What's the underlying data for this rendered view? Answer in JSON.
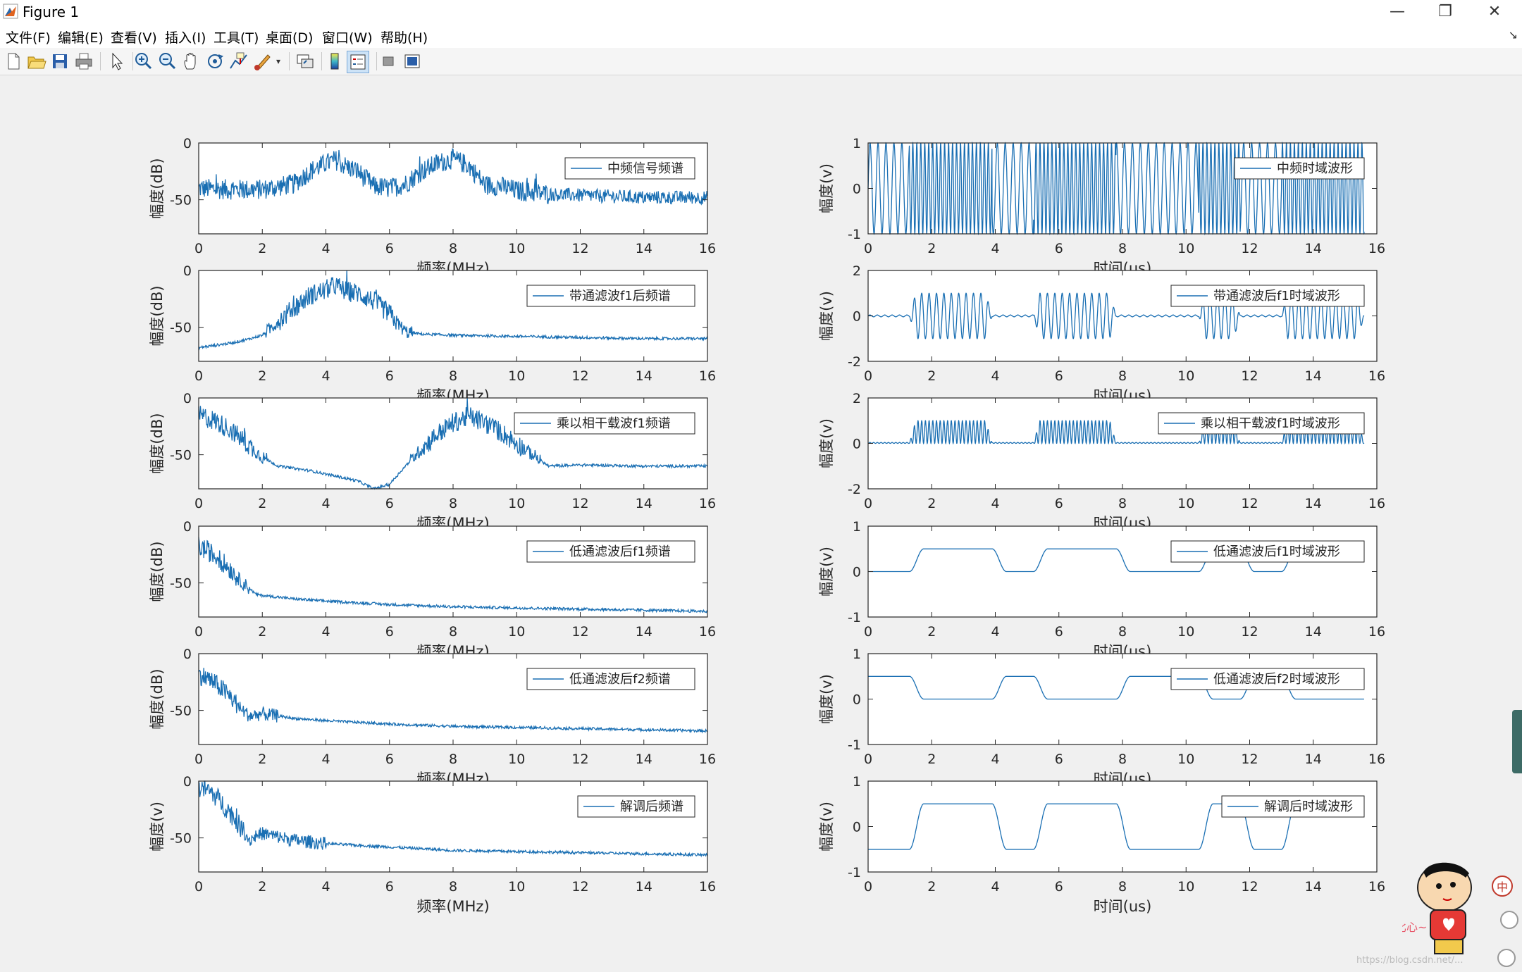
{
  "window": {
    "title": "Figure 1",
    "controls": {
      "minimize": "—",
      "restore": "❐",
      "close": "✕"
    }
  },
  "menu": {
    "items": [
      "文件(F)",
      "编辑(E)",
      "查看(V)",
      "插入(I)",
      "工具(T)",
      "桌面(D)",
      "窗口(W)",
      "帮助(H)"
    ],
    "corner_icon": "dock-arrow-icon"
  },
  "toolbar": {
    "buttons": [
      "new-figure-icon",
      "open-file-icon",
      "save-icon",
      "print-icon",
      "pointer-icon",
      "zoom-in-icon",
      "zoom-out-icon",
      "pan-icon",
      "rotate-3d-icon",
      "data-cursor-icon",
      "brush-icon",
      "link-plot-icon",
      "colorbar-icon",
      "legend-icon",
      "hide-plot-tools-icon",
      "show-plot-tools-icon"
    ]
  },
  "watermark": "https://blog.csdn.net/...",
  "overlay": {
    "ime_label": "中",
    "bubble": "比心~"
  },
  "chart_data": [
    {
      "type": "line",
      "panel": "freq",
      "legend": "中频信号频谱",
      "ylabel": "幅度(dB)",
      "xlabel": "频率(MHz)",
      "xlim": [
        0,
        16
      ],
      "ylim": [
        -80,
        0
      ],
      "xticks": [
        0,
        2,
        4,
        6,
        8,
        10,
        12,
        14,
        16
      ],
      "yticks": [
        0,
        -50
      ],
      "series": [
        {
          "name": "中频信号频谱",
          "x": [
            0,
            1,
            2,
            3,
            3.5,
            4,
            4.3,
            4.6,
            5,
            5.5,
            6,
            6.5,
            7,
            7.5,
            8,
            8.5,
            9,
            9.5,
            10,
            11,
            12,
            13,
            14,
            15,
            16
          ],
          "y": [
            -40,
            -41,
            -41,
            -36,
            -25,
            -18,
            -15,
            -20,
            -25,
            -38,
            -40,
            -36,
            -25,
            -18,
            -14,
            -20,
            -37,
            -38,
            -42,
            -45,
            -46,
            -47,
            -48,
            -48,
            -48
          ]
        }
      ]
    },
    {
      "type": "line",
      "panel": "freq",
      "legend": "带通滤波f1后频谱",
      "ylabel": "幅度(dB)",
      "xlabel": "频率(MHz)",
      "xlim": [
        0,
        16
      ],
      "ylim": [
        -80,
        0
      ],
      "xticks": [
        0,
        2,
        4,
        6,
        8,
        10,
        12,
        14,
        16
      ],
      "yticks": [
        0,
        -50
      ],
      "series": [
        {
          "name": "带通滤波f1后频谱",
          "x": [
            0,
            1,
            1.5,
            2,
            2.5,
            3,
            3.5,
            4,
            4.3,
            4.6,
            5,
            5.5,
            6,
            6.5,
            7,
            8,
            10,
            12,
            14,
            16
          ],
          "y": [
            -68,
            -64,
            -61,
            -57,
            -45,
            -33,
            -22,
            -17,
            -13,
            -18,
            -20,
            -27,
            -38,
            -54,
            -56,
            -57,
            -58,
            -59,
            -60,
            -60
          ]
        }
      ]
    },
    {
      "type": "line",
      "panel": "freq",
      "legend": "乘以相干载波f1频谱",
      "ylabel": "幅度(dB)",
      "xlabel": "频率(MHz)",
      "xlim": [
        0,
        16
      ],
      "ylim": [
        -80,
        0
      ],
      "xticks": [
        0,
        2,
        4,
        6,
        8,
        10,
        12,
        14,
        16
      ],
      "yticks": [
        0,
        -50
      ],
      "series": [
        {
          "name": "乘以相干载波f1频谱",
          "x": [
            0,
            0.5,
            1,
            1.5,
            2,
            2.5,
            3,
            3.5,
            4,
            4.5,
            5,
            5.5,
            6,
            6.5,
            7,
            7.5,
            8,
            8.5,
            9,
            9.5,
            10,
            10.5,
            11,
            12,
            14,
            16
          ],
          "y": [
            -15,
            -20,
            -28,
            -40,
            -52,
            -60,
            -62,
            -64,
            -67,
            -70,
            -73,
            -80,
            -76,
            -60,
            -45,
            -32,
            -22,
            -16,
            -22,
            -30,
            -40,
            -50,
            -60,
            -59,
            -60,
            -60
          ]
        }
      ]
    },
    {
      "type": "line",
      "panel": "freq",
      "legend": "低通滤波后f1频谱",
      "ylabel": "幅度(dB)",
      "xlabel": "频率(MHz)",
      "xlim": [
        0,
        16
      ],
      "ylim": [
        -80,
        0
      ],
      "xticks": [
        0,
        2,
        4,
        6,
        8,
        10,
        12,
        14,
        16
      ],
      "yticks": [
        0,
        -50
      ],
      "series": [
        {
          "name": "低通滤波后f1频谱",
          "x": [
            0,
            0.3,
            0.6,
            1,
            1.3,
            1.6,
            1.8,
            2,
            3,
            4,
            6,
            8,
            10,
            12,
            14,
            16
          ],
          "y": [
            -18,
            -22,
            -28,
            -38,
            -48,
            -55,
            -60,
            -61,
            -64,
            -66,
            -69,
            -71,
            -72,
            -73,
            -74,
            -75
          ]
        }
      ]
    },
    {
      "type": "line",
      "panel": "freq",
      "legend": "低通滤波后f2频谱",
      "ylabel": "幅度(dB)",
      "xlabel": "频率(MHz)",
      "xlim": [
        0,
        16
      ],
      "ylim": [
        -80,
        0
      ],
      "xticks": [
        0,
        2,
        4,
        6,
        8,
        10,
        12,
        14,
        16
      ],
      "yticks": [
        0,
        -50
      ],
      "series": [
        {
          "name": "低通滤波后f2频谱",
          "x": [
            0,
            0.3,
            0.6,
            1,
            1.3,
            1.6,
            1.8,
            2,
            3,
            4,
            6,
            8,
            10,
            12,
            14,
            16
          ],
          "y": [
            -18,
            -22,
            -28,
            -38,
            -48,
            -55,
            -54,
            -53,
            -57,
            -59,
            -62,
            -64,
            -65,
            -66,
            -67,
            -68
          ]
        }
      ]
    },
    {
      "type": "line",
      "panel": "freq",
      "legend": "解调后频谱",
      "ylabel": "幅度(v)",
      "xlabel": "频率(MHz)",
      "xlim": [
        0,
        16
      ],
      "ylim": [
        -80,
        0
      ],
      "xticks": [
        0,
        2,
        4,
        6,
        8,
        10,
        12,
        14,
        16
      ],
      "yticks": [
        0,
        -50
      ],
      "series": [
        {
          "name": "解调后频谱",
          "x": [
            0,
            0.3,
            0.6,
            1,
            1.3,
            1.6,
            1.8,
            2,
            3,
            4,
            6,
            8,
            10,
            12,
            14,
            16
          ],
          "y": [
            -5,
            -8,
            -15,
            -28,
            -40,
            -52,
            -48,
            -46,
            -52,
            -55,
            -58,
            -61,
            -62,
            -63,
            -64,
            -65
          ]
        }
      ]
    },
    {
      "type": "line",
      "panel": "time",
      "legend": "中频时域波形",
      "ylabel": "幅度(v)",
      "xlabel": "时间(us)",
      "xlim": [
        0,
        16
      ],
      "ylim": [
        -1,
        1
      ],
      "xticks": [
        0,
        2,
        4,
        6,
        8,
        10,
        12,
        14,
        16
      ],
      "yticks": [
        1,
        0,
        -1
      ],
      "bits": [
        0,
        1,
        1,
        0,
        1,
        1,
        0,
        0,
        1,
        0,
        1,
        1
      ],
      "f_low": 4,
      "f_high": 8,
      "amplitude": 1,
      "bit_duration": 1.3,
      "t_end": 15.6
    },
    {
      "type": "line",
      "panel": "time",
      "legend": "带通滤波后f1时域波形",
      "ylabel": "幅度(v)",
      "xlabel": "时间(us)",
      "xlim": [
        0,
        16
      ],
      "ylim": [
        -2,
        2
      ],
      "xticks": [
        0,
        2,
        4,
        6,
        8,
        10,
        12,
        14,
        16
      ],
      "yticks": [
        2,
        0,
        -2
      ],
      "bits": [
        0,
        1,
        1,
        0,
        1,
        1,
        0,
        0,
        1,
        0,
        1,
        1
      ],
      "carrier": 4.3,
      "amplitude": 1,
      "bit_duration": 1.3,
      "t_end": 15.6
    },
    {
      "type": "line",
      "panel": "time",
      "legend": "乘以相干载波f1时域波形",
      "ylabel": "幅度(v)",
      "xlabel": "时间(us)",
      "xlim": [
        0,
        16
      ],
      "ylim": [
        -2,
        2
      ],
      "xticks": [
        0,
        2,
        4,
        6,
        8,
        10,
        12,
        14,
        16
      ],
      "yticks": [
        2,
        0,
        -2
      ],
      "bits": [
        0,
        1,
        1,
        0,
        1,
        1,
        0,
        0,
        1,
        0,
        1,
        1
      ],
      "carrier": 4.3,
      "amplitude": 1,
      "bit_duration": 1.3,
      "t_end": 15.6
    },
    {
      "type": "line",
      "panel": "time",
      "legend": "低通滤波后f1时域波形",
      "ylabel": "幅度(v)",
      "xlabel": "时间(us)",
      "xlim": [
        0,
        16
      ],
      "ylim": [
        -1,
        1
      ],
      "xticks": [
        0,
        2,
        4,
        6,
        8,
        10,
        12,
        14,
        16
      ],
      "yticks": [
        1,
        0,
        -1
      ],
      "bits": [
        0,
        1,
        1,
        0,
        1,
        1,
        0,
        0,
        1,
        0,
        1,
        1
      ],
      "high": 0.5,
      "low": 0,
      "bit_duration": 1.3,
      "t_end": 15.6
    },
    {
      "type": "line",
      "panel": "time",
      "legend": "低通滤波后f2时域波形",
      "ylabel": "幅度(v)",
      "xlabel": "时间(us)",
      "xlim": [
        0,
        16
      ],
      "ylim": [
        -1,
        1
      ],
      "xticks": [
        0,
        2,
        4,
        6,
        8,
        10,
        12,
        14,
        16
      ],
      "yticks": [
        1,
        0,
        -1
      ],
      "bits": [
        1,
        0,
        0,
        1,
        0,
        0,
        1,
        1,
        0,
        1,
        0,
        0
      ],
      "high": 0.5,
      "low": 0,
      "bit_duration": 1.3,
      "t_end": 15.6
    },
    {
      "type": "line",
      "panel": "time",
      "legend": "解调后时域波形",
      "ylabel": "幅度(v)",
      "xlabel": "时间(us)",
      "xlim": [
        0,
        16
      ],
      "ylim": [
        -1,
        1
      ],
      "xticks": [
        0,
        2,
        4,
        6,
        8,
        10,
        12,
        14,
        16
      ],
      "yticks": [
        1,
        0,
        -1
      ],
      "bits": [
        0,
        1,
        1,
        0,
        1,
        1,
        0,
        0,
        1,
        0,
        1,
        1
      ],
      "high": 0.5,
      "low": -0.5,
      "bit_duration": 1.3,
      "t_end": 15.6
    }
  ]
}
